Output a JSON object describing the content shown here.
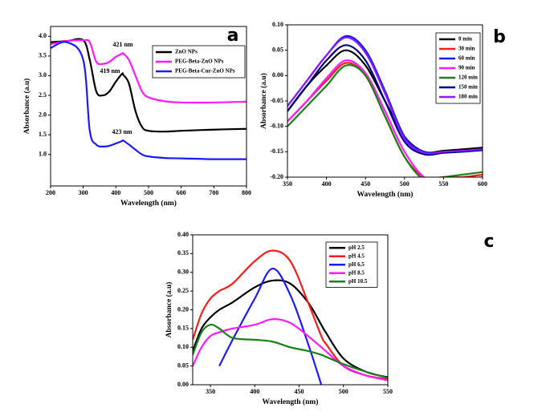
{
  "chart_data": [
    {
      "type": "line",
      "panel_label": "a",
      "x_label": "Wavelength (nm)",
      "y_label": "Absorbance (a.u)",
      "xlim": [
        200,
        800
      ],
      "xticks": [
        200,
        300,
        400,
        500,
        600,
        700,
        800
      ],
      "ylim": [
        0.2,
        4.25
      ],
      "yticks": [
        {
          "value": 1.0,
          "label": "1.0"
        },
        1.5,
        {
          "value": 2.0,
          "label": "2.0"
        },
        2.5,
        {
          "value": 3.0,
          "label": "3.0"
        },
        3.5,
        {
          "value": 4.0,
          "label": "4.0"
        }
      ],
      "legend": "upper right",
      "annotations": [
        "421 nm",
        "419 nm",
        "423 nm"
      ],
      "x": [
        200,
        250,
        300,
        320,
        340,
        360,
        380,
        400,
        419,
        421,
        423,
        440,
        460,
        480,
        500,
        550,
        600,
        700,
        800
      ],
      "series": [
        {
          "name": "ZnO NPs",
          "color": "#000000",
          "values": [
            3.85,
            3.88,
            3.9,
            3.4,
            2.6,
            2.5,
            2.6,
            2.85,
            3.05,
            3.04,
            3.02,
            2.8,
            2.1,
            1.7,
            1.6,
            1.58,
            1.6,
            1.63,
            1.65
          ]
        },
        {
          "name": "PEG-Beta-ZnO NPs",
          "color": "#ff1aff",
          "values": [
            3.8,
            3.88,
            3.9,
            3.85,
            3.35,
            3.3,
            3.35,
            3.48,
            3.56,
            3.57,
            3.56,
            3.4,
            3.0,
            2.6,
            2.45,
            2.35,
            2.32,
            2.32,
            2.34
          ]
        },
        {
          "name": "PEG-Beta-Cur-ZnO NPs",
          "color": "#1a1aff",
          "values": [
            3.7,
            3.85,
            3.4,
            1.6,
            1.25,
            1.2,
            1.22,
            1.28,
            1.34,
            1.35,
            1.35,
            1.25,
            1.12,
            1.0,
            0.95,
            0.91,
            0.9,
            0.88,
            0.88
          ]
        }
      ]
    },
    {
      "type": "line",
      "panel_label": "b",
      "x_label": "Wavelength (nm)",
      "y_label": "Absorbance (a.u)",
      "xlim": [
        350,
        600
      ],
      "xticks": [
        350,
        400,
        450,
        500,
        550,
        600
      ],
      "ylim": [
        -0.2,
        0.1
      ],
      "yticks": [
        {
          "value": -0.2,
          "label": "-0.20"
        },
        -0.15,
        {
          "value": -0.1,
          "label": "-0.10"
        },
        -0.05,
        {
          "value": 0,
          "label": "0.00"
        },
        0.05,
        {
          "value": 0.1,
          "label": "0.10"
        }
      ],
      "legend": "upper right",
      "x": [
        350,
        375,
        400,
        425,
        450,
        475,
        500,
        525,
        550,
        575,
        600
      ],
      "series": [
        {
          "name": "0 min",
          "color": "#000000",
          "values": [
            -0.07,
            -0.02,
            0.02,
            0.05,
            0.02,
            -0.05,
            -0.12,
            -0.15,
            -0.148,
            -0.145,
            -0.142
          ]
        },
        {
          "name": "30 min",
          "color": "#ff1a1a",
          "values": [
            -0.09,
            -0.05,
            -0.01,
            0.025,
            0.0,
            -0.08,
            -0.16,
            -0.2,
            -0.2,
            -0.2,
            -0.195
          ]
        },
        {
          "name": "60 min",
          "color": "#1a1aff",
          "values": [
            -0.06,
            -0.01,
            0.04,
            0.078,
            0.05,
            -0.03,
            -0.12,
            -0.15,
            -0.15,
            -0.148,
            -0.146
          ]
        },
        {
          "name": "90 min",
          "color": "#ff1aff",
          "values": [
            -0.09,
            -0.05,
            -0.005,
            0.03,
            0.005,
            -0.07,
            -0.15,
            -0.2,
            -0.21,
            -0.205,
            -0.2
          ]
        },
        {
          "name": "120 min",
          "color": "#1a801a",
          "values": [
            -0.1,
            -0.06,
            -0.02,
            0.02,
            0.0,
            -0.08,
            -0.16,
            -0.205,
            -0.2,
            -0.195,
            -0.19
          ]
        },
        {
          "name": "150 min",
          "color": "#000080",
          "values": [
            -0.07,
            -0.02,
            0.03,
            0.06,
            0.03,
            -0.05,
            -0.13,
            -0.155,
            -0.152,
            -0.15,
            -0.147
          ]
        },
        {
          "name": "180 min",
          "color": "#8b1aff",
          "values": [
            -0.06,
            -0.01,
            0.04,
            0.075,
            0.045,
            -0.035,
            -0.125,
            -0.152,
            -0.15,
            -0.148,
            -0.145
          ]
        }
      ]
    },
    {
      "type": "line",
      "panel_label": "c",
      "x_label": "Wavelength (nm)",
      "y_label": "Absorbance (a.u)",
      "xlim": [
        330,
        550
      ],
      "xticks": [
        350,
        400,
        450,
        500,
        550
      ],
      "ylim": [
        0,
        0.4
      ],
      "yticks": [
        {
          "value": 0,
          "label": "0.00"
        },
        0.05,
        {
          "value": 0.1,
          "label": "0.10"
        },
        0.15,
        {
          "value": 0.2,
          "label": "0.20"
        },
        0.25,
        {
          "value": 0.3,
          "label": "0.30"
        },
        0.35,
        {
          "value": 0.4,
          "label": "0.40"
        }
      ],
      "legend": "upper right",
      "x": [
        330,
        340,
        350,
        360,
        375,
        400,
        420,
        440,
        460,
        475,
        480,
        500,
        525,
        550
      ],
      "series": [
        {
          "name": "pH 2.5",
          "color": "#000000",
          "values": [
            0.09,
            0.15,
            0.18,
            0.2,
            0.22,
            0.26,
            0.278,
            0.27,
            0.22,
            0.16,
            0.14,
            0.07,
            0.035,
            0.02
          ]
        },
        {
          "name": "pH 4.5",
          "color": "#ff1a1a",
          "values": [
            0.12,
            0.19,
            0.23,
            0.25,
            0.27,
            0.33,
            0.358,
            0.33,
            0.22,
            0.13,
            0.11,
            0.05,
            0.025,
            0.015
          ]
        },
        {
          "name": "pH 6.5",
          "color": "#1a1aff",
          "values": [
            null,
            null,
            null,
            0.05,
            0.12,
            0.23,
            0.31,
            0.24,
            0.11,
            0.0,
            null,
            null,
            null,
            null
          ]
        },
        {
          "name": "pH 8.5",
          "color": "#ff1aff",
          "values": [
            0.05,
            0.1,
            0.13,
            0.14,
            0.15,
            0.16,
            0.175,
            0.165,
            0.13,
            0.1,
            0.09,
            0.05,
            0.025,
            0.012
          ]
        },
        {
          "name": "pH 10.5",
          "color": "#1a801a",
          "values": [
            0.08,
            0.14,
            0.16,
            0.15,
            0.125,
            0.12,
            0.115,
            0.1,
            0.09,
            0.08,
            0.075,
            0.055,
            0.035,
            0.018
          ]
        }
      ]
    }
  ]
}
